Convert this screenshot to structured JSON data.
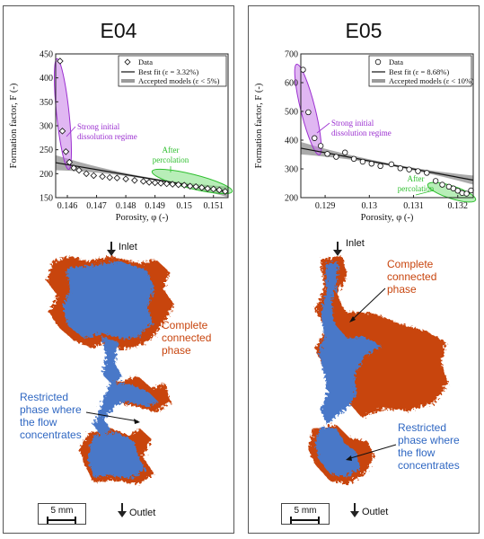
{
  "panels": [
    {
      "id": "E04",
      "title": "E04",
      "legend": {
        "data": "Data",
        "best_fit": "Best fit (ε = 3.32%)",
        "accepted": "Accepted models (ε < 5%)"
      },
      "annotation_initial": [
        "Strong initial",
        "dissolution regime"
      ],
      "annotation_after": [
        "After",
        "percolation"
      ],
      "labels": {
        "inlet": "Inlet",
        "outlet": "Outlet",
        "scale": "5 mm",
        "complete": [
          "Complete",
          "connected",
          "phase"
        ],
        "restricted": [
          "Restricted",
          "phase where",
          "the flow",
          "concentrates"
        ]
      }
    },
    {
      "id": "E05",
      "title": "E05",
      "legend": {
        "data": "Data",
        "best_fit": "Best fit (ε = 8.68%)",
        "accepted": "Accepted models (ε < 10%)"
      },
      "annotation_initial": [
        "Strong initial",
        "dissolution regime"
      ],
      "annotation_after": [
        "After",
        "percolation"
      ],
      "labels": {
        "inlet": "Inlet",
        "outlet": "Outlet",
        "scale": "5 mm",
        "complete": [
          "Complete",
          "connected",
          "phase"
        ],
        "restricted": [
          "Restricted",
          "phase where",
          "the flow",
          "concentrates"
        ]
      }
    }
  ],
  "chart_data": [
    {
      "type": "scatter",
      "title": "E04",
      "xlabel": "Porosity, φ (-)",
      "ylabel": "Formation factor, F (-)",
      "xlim": [
        0.1456,
        0.1515
      ],
      "ylim": [
        150,
        450
      ],
      "xticks": [
        "0.146",
        "0.147",
        "0.148",
        "0.149",
        "0.15",
        "0.151"
      ],
      "xtick_values": [
        0.146,
        0.147,
        0.148,
        0.149,
        0.15,
        0.151
      ],
      "yticks": [
        150,
        200,
        250,
        300,
        350,
        400,
        450
      ],
      "series": [
        {
          "name": "Data",
          "x": [
            0.14575,
            0.14583,
            0.14595,
            0.14607,
            0.14622,
            0.1464,
            0.14665,
            0.1469,
            0.1472,
            0.14745,
            0.1477,
            0.148,
            0.1483,
            0.1486,
            0.1488,
            0.149,
            0.1492,
            0.1494,
            0.1496,
            0.1498,
            0.15,
            0.1502,
            0.1504,
            0.1506,
            0.1508,
            0.151,
            0.1512,
            0.1514
          ],
          "y": [
            435,
            289,
            246,
            224,
            212,
            207,
            200,
            196,
            194,
            192,
            191,
            189,
            186,
            184,
            182,
            181,
            180,
            179,
            178,
            177,
            176,
            174,
            173,
            171,
            169,
            168,
            166,
            163
          ]
        },
        {
          "name": "Best fit (ε = 3.32%)",
          "x": [
            0.1456,
            0.1515
          ],
          "y": [
            223,
            162
          ]
        }
      ]
    },
    {
      "type": "scatter",
      "title": "E05",
      "xlabel": "Porosity, φ (-)",
      "ylabel": "Formation factor, F (-)",
      "xlim": [
        0.12845,
        0.13235
      ],
      "ylim": [
        200,
        700
      ],
      "xticks": [
        "0.129",
        "0.13",
        "0.131",
        "0.132"
      ],
      "xtick_values": [
        0.129,
        0.13,
        0.131,
        0.132
      ],
      "yticks": [
        200,
        300,
        400,
        500,
        600,
        700
      ],
      "series": [
        {
          "name": "Data",
          "x": [
            0.1285,
            0.12862,
            0.12876,
            0.1289,
            0.12905,
            0.12925,
            0.12945,
            0.12965,
            0.12985,
            0.13005,
            0.13025,
            0.1305,
            0.1307,
            0.1309,
            0.1311,
            0.1313,
            0.1315,
            0.13165,
            0.1318,
            0.1319,
            0.132,
            0.1321,
            0.1322,
            0.1323
          ],
          "y": [
            645,
            497,
            407,
            380,
            352,
            342,
            357,
            335,
            325,
            318,
            310,
            316,
            302,
            298,
            292,
            286,
            258,
            245,
            238,
            232,
            224,
            216,
            214,
            225
          ]
        },
        {
          "name": "Best fit (ε = 8.68%)",
          "x": [
            0.12845,
            0.13235
          ],
          "y": [
            372,
            261
          ]
        }
      ]
    }
  ]
}
